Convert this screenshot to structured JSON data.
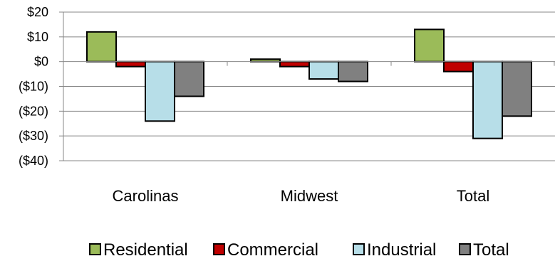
{
  "chart_data": {
    "type": "bar",
    "categories": [
      "Carolinas",
      "Midwest",
      "Total"
    ],
    "series": [
      {
        "name": "Residential",
        "values": [
          12,
          1,
          13
        ],
        "color": "#9BBB59"
      },
      {
        "name": "Commercial",
        "values": [
          -2,
          -2,
          -4
        ],
        "color": "#C00000"
      },
      {
        "name": "Industrial",
        "values": [
          -24,
          -7,
          -31
        ],
        "color": "#B7DEE8"
      },
      {
        "name": "Total",
        "values": [
          -14,
          -8,
          -22
        ],
        "color": "#808080"
      }
    ],
    "yticks": [
      20,
      10,
      0,
      -10,
      -20,
      -30,
      -40
    ],
    "ytick_labels": [
      "$20",
      "$10",
      "$0",
      "($10)",
      "($20)",
      "($30)",
      "($40)"
    ],
    "ylim": [
      -40,
      20
    ],
    "grid": true,
    "legend_position": "bottom",
    "title": "",
    "xlabel": "",
    "ylabel": ""
  }
}
